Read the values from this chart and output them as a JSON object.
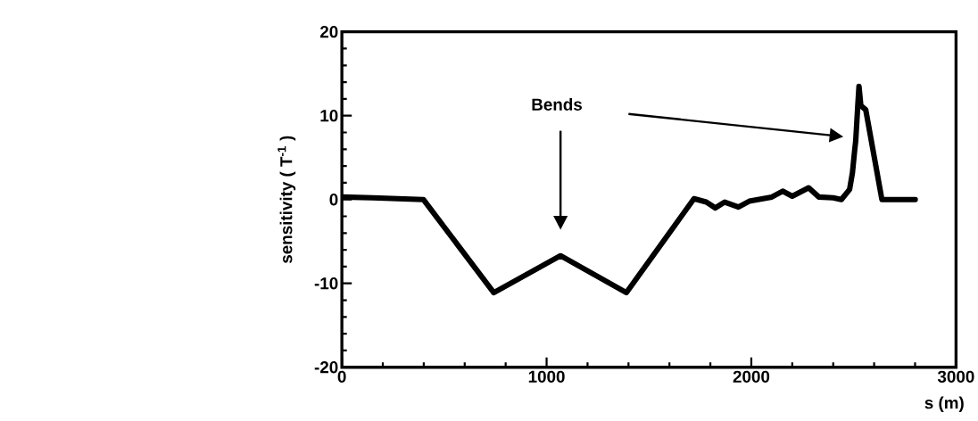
{
  "chart_data": {
    "type": "line",
    "xlabel": "s (m)",
    "ylabel": "sensitivity ( T$^{-1}$ )",
    "x": [
      0,
      150,
      398,
      742,
      1068,
      1390,
      1720,
      1780,
      1824,
      1870,
      1937,
      1990,
      2100,
      2153,
      2200,
      2280,
      2330,
      2400,
      2440,
      2480,
      2494,
      2505,
      2510,
      2520,
      2526,
      2535,
      2559,
      2638,
      2801
    ],
    "series": [
      {
        "color": "#000000",
        "values": [
          0.3,
          0.2,
          0,
          -11.1,
          -6.7,
          -11.1,
          0.1,
          -0.3,
          -1.0,
          -0.3,
          -0.9,
          -0.2,
          0.3,
          1.0,
          0.4,
          1.4,
          0.3,
          0.2,
          0.0,
          1.2,
          3.2,
          5.9,
          7.0,
          11.2,
          13.5,
          11.2,
          10.7,
          0,
          0
        ]
      }
    ],
    "xlim": [
      0,
      3000
    ],
    "ylim": [
      -20,
      20
    ],
    "xticks": [
      0,
      1000,
      2000,
      3000
    ],
    "yticks": [
      -20,
      -10,
      0,
      10,
      20
    ],
    "annotations": [
      "Bends"
    ]
  }
}
